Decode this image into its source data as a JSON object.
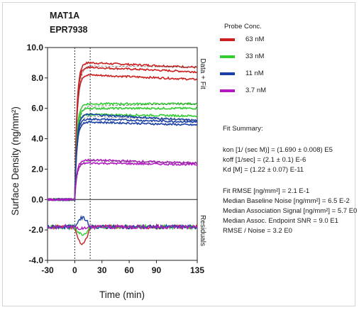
{
  "header": {
    "line1": "MAT1A",
    "line2": "EPR7938"
  },
  "side_labels": {
    "top": "Data + Fit",
    "bottom": "Residuals"
  },
  "legend": {
    "title": "Probe Conc.",
    "items": [
      {
        "label": "63 nM",
        "color": "#cc2020"
      },
      {
        "label": "33 nM",
        "color": "#33cc33"
      },
      {
        "label": "11 nM",
        "color": "#1a3fa6"
      },
      {
        "label": "3.7 nM",
        "color": "#b01ac0"
      }
    ]
  },
  "fit_summary": {
    "title": "Fit Summary:",
    "lines": [
      "kon  [1/ (sec M)]  =  (1.690 ± 0.008) E5",
      "koff  [1/sec]  =  (2.1 ± 0.1) E-6",
      "Kd  [M]  =  (1.22 ± 0.07) E-11",
      "Fit RMSE [ng/mm²]  =  2.1 E-1",
      "Median Baseline Noise [ng/mm²]  =  6.5 E-2",
      "Median Association Signal [ng/mm²]  =  5.7 E0",
      "Median Assoc. Endpoint SNR  =  9.0 E1",
      "RMSE / Noise  =  3.2 E0"
    ]
  },
  "chart_data": {
    "type": "line",
    "xlabel": "Time (min)",
    "ylabel": "Surface Density (ng/mm²)",
    "xlim": [
      -30,
      135
    ],
    "ylim": [
      -4,
      10
    ],
    "xticks": [
      "-30",
      "0",
      "30",
      "60",
      "90",
      "135"
    ],
    "xtick_values": [
      -30,
      0,
      30,
      60,
      90,
      135
    ],
    "yticks": [
      "10.0",
      "8.0",
      "6.0",
      "4.0",
      "2.0",
      "0.0",
      "-2.0",
      "-4.0"
    ],
    "ytick_values": [
      10,
      8,
      6,
      4,
      2,
      0,
      -2,
      -4
    ],
    "association_start": 0,
    "dissociation_start": 17,
    "residual_baseline": -1.8,
    "grid": false,
    "series": [
      {
        "name": "63 nM",
        "color": "#cc2020",
        "plateaus": [
          9.0,
          8.7,
          8.2
        ],
        "endpoints": [
          8.7,
          8.4,
          7.9
        ],
        "residual_dip": -2.9
      },
      {
        "name": "33 nM",
        "color": "#33cc33",
        "plateaus": [
          6.3,
          6.0,
          5.6
        ],
        "endpoints": [
          6.3,
          6.0,
          5.5
        ],
        "residual_dip": -2.3
      },
      {
        "name": "11 nM",
        "color": "#1a3fa6",
        "plateaus": [
          5.6,
          5.3,
          5.1
        ],
        "endpoints": [
          5.2,
          5.1,
          4.9
        ],
        "residual_dip": -1.2
      },
      {
        "name": "3.7 nM",
        "color": "#b01ac0",
        "plateaus": [
          2.6,
          2.4
        ],
        "endpoints": [
          2.4,
          2.3
        ],
        "residual_dip": -1.9
      }
    ]
  }
}
